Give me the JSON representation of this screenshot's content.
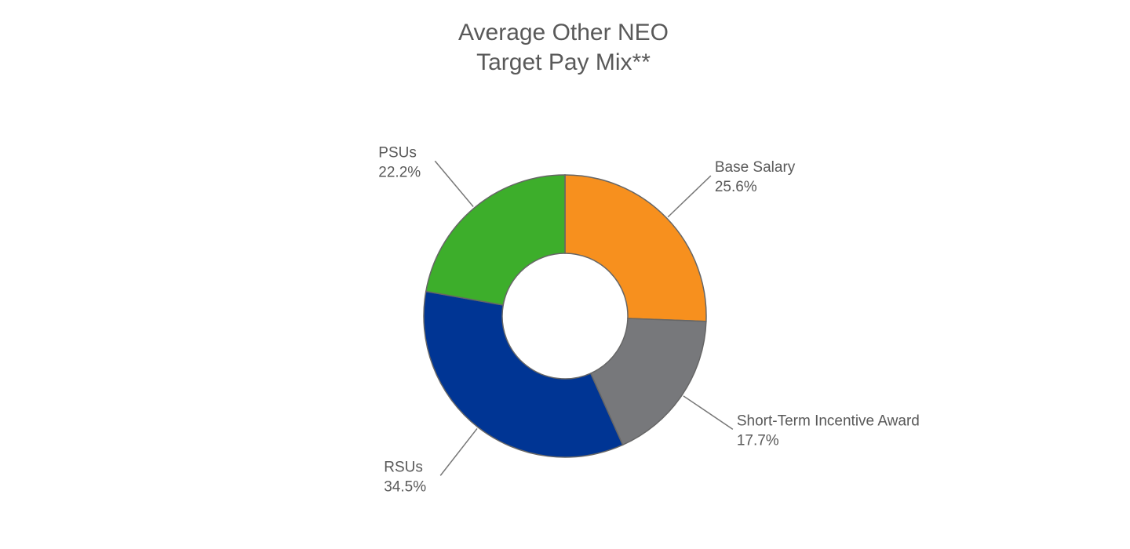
{
  "chart_data": {
    "type": "donut",
    "title": [
      "Average Other NEO",
      "Target Pay Mix**"
    ],
    "categories": [
      "Base Salary",
      "Short-Term Incentive Award",
      "RSUs",
      "PSUs"
    ],
    "values": [
      25.6,
      17.7,
      34.5,
      22.2
    ],
    "value_labels": [
      "25.6%",
      "17.7%",
      "34.5%",
      "22.2%"
    ],
    "colors": [
      "#f7901e",
      "#77787b",
      "#003594",
      "#3dae2b"
    ]
  }
}
